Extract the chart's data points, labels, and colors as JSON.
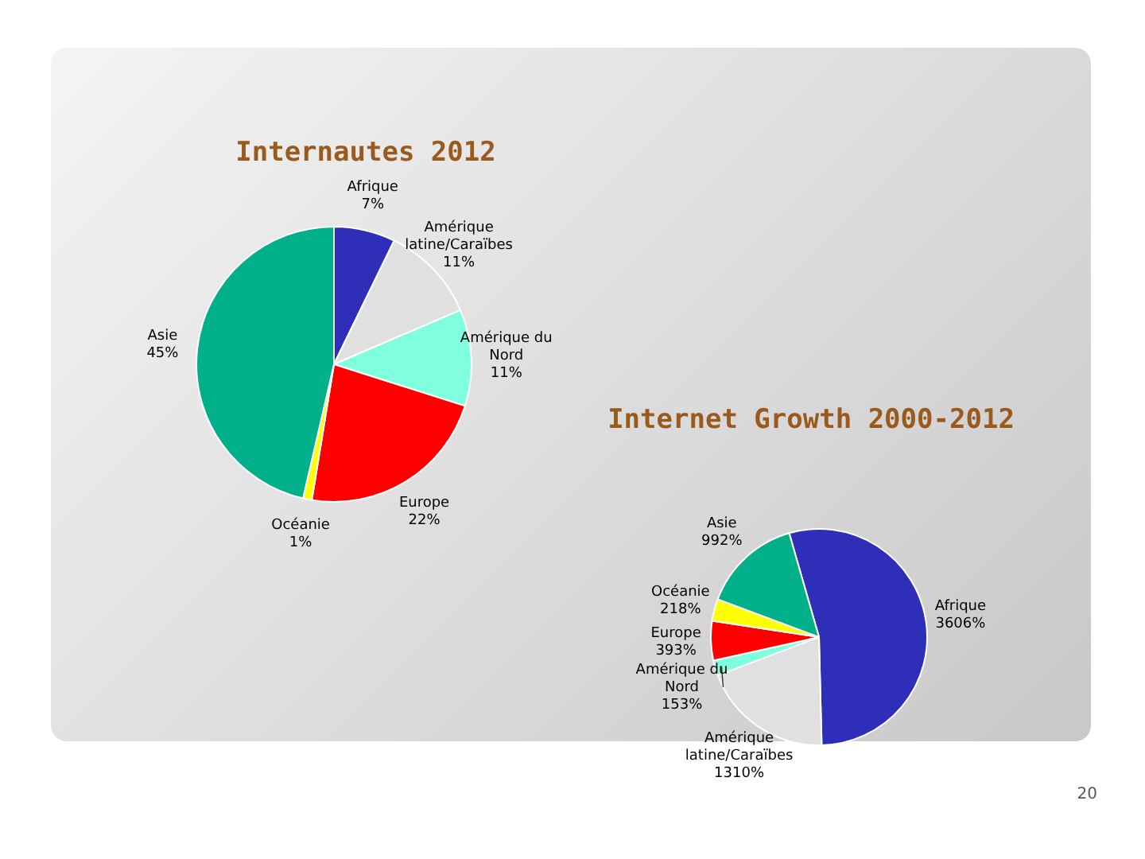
{
  "chart_data": [
    {
      "type": "pie",
      "title": "Internautes 2012",
      "categories": [
        "Afrique",
        "Amérique latine/Caraïbes",
        "Amérique du Nord",
        "Europe",
        "Océanie",
        "Asie"
      ],
      "values": [
        7,
        11,
        11,
        22,
        1,
        45
      ],
      "value_labels": [
        "7%",
        "11%",
        "11%",
        "22%",
        "1%",
        "45%"
      ],
      "colors": [
        "#2e2eb8",
        "#e0e0e0",
        "#80ffdf",
        "#ff0000",
        "#ffff00",
        "#00b08a"
      ]
    },
    {
      "type": "pie",
      "title": "Internet Growth 2000-2012",
      "categories": [
        "Afrique",
        "Amérique latine/Caraïbes",
        "Amérique du Nord",
        "Europe",
        "Océanie",
        "Asie"
      ],
      "values": [
        3606,
        1310,
        153,
        393,
        218,
        992
      ],
      "value_labels": [
        "3606%",
        "1310%",
        "153%",
        "393%",
        "218%",
        "992%"
      ],
      "colors": [
        "#2e2eb8",
        "#e0e0e0",
        "#80ffdf",
        "#ff0000",
        "#ffff00",
        "#00b08a"
      ],
      "annotations": [
        "20"
      ]
    }
  ]
}
